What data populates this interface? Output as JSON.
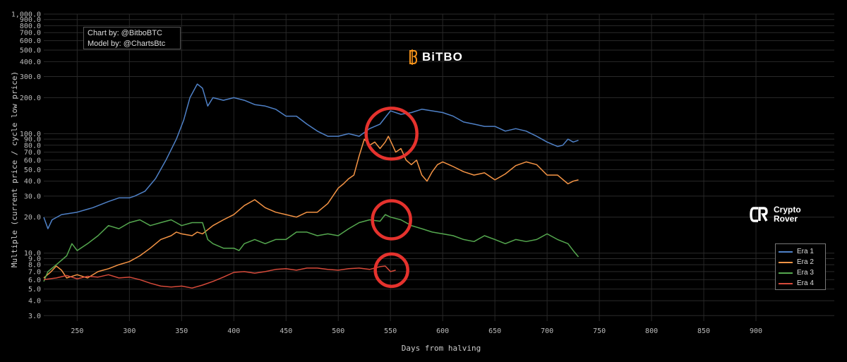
{
  "credits": {
    "line1": "Chart by: @BitboBTC",
    "line2": "Model by: @ChartsBtc"
  },
  "brand": {
    "name": "BiTBO",
    "icon": "bitbo-b-icon",
    "color": "#f7931a"
  },
  "watermark": {
    "line1": "Crypto",
    "line2": "Rover",
    "icon": "crypto-rover-cr-icon"
  },
  "chart_data": {
    "type": "line",
    "xlabel": "Days from halving",
    "ylabel": "Multiple (current price / cycle low price)",
    "yscale": "log",
    "xlim": [
      218,
      975
    ],
    "ylim": [
      2.7,
      1000
    ],
    "grid": true,
    "legend_position": "bottom-right",
    "x_ticks": [
      "250",
      "300",
      "350",
      "400",
      "450",
      "500",
      "550",
      "600",
      "650",
      "700",
      "750",
      "800",
      "850",
      "900"
    ],
    "y_ticks": [
      "3.0",
      "4.0",
      "5.0",
      "6.0",
      "7.0",
      "8.0",
      "9.0",
      "10.0",
      "20.0",
      "30.0",
      "40.0",
      "50.0",
      "60.0",
      "70.0",
      "80.0",
      "90.0",
      "100.0",
      "200.0",
      "300.0",
      "400.0",
      "500.0",
      "600.0",
      "700.0",
      "800.0",
      "900.0",
      "1,000.0"
    ],
    "series": [
      {
        "name": "Era 1",
        "color": "#4f81c7",
        "points": [
          [
            218,
            20
          ],
          [
            222,
            16
          ],
          [
            226,
            19
          ],
          [
            235,
            21
          ],
          [
            250,
            22
          ],
          [
            265,
            24
          ],
          [
            280,
            27
          ],
          [
            290,
            29
          ],
          [
            300,
            29
          ],
          [
            305,
            30
          ],
          [
            315,
            33
          ],
          [
            325,
            42
          ],
          [
            335,
            60
          ],
          [
            345,
            90
          ],
          [
            352,
            130
          ],
          [
            358,
            200
          ],
          [
            365,
            260
          ],
          [
            370,
            240
          ],
          [
            375,
            170
          ],
          [
            380,
            200
          ],
          [
            390,
            190
          ],
          [
            400,
            200
          ],
          [
            410,
            190
          ],
          [
            420,
            175
          ],
          [
            430,
            170
          ],
          [
            440,
            160
          ],
          [
            450,
            140
          ],
          [
            460,
            140
          ],
          [
            470,
            120
          ],
          [
            480,
            105
          ],
          [
            490,
            95
          ],
          [
            500,
            95
          ],
          [
            510,
            100
          ],
          [
            520,
            95
          ],
          [
            530,
            110
          ],
          [
            540,
            120
          ],
          [
            550,
            155
          ],
          [
            560,
            145
          ],
          [
            570,
            150
          ],
          [
            580,
            160
          ],
          [
            590,
            155
          ],
          [
            600,
            150
          ],
          [
            610,
            140
          ],
          [
            620,
            125
          ],
          [
            630,
            120
          ],
          [
            640,
            115
          ],
          [
            650,
            115
          ],
          [
            660,
            105
          ],
          [
            670,
            110
          ],
          [
            680,
            105
          ],
          [
            690,
            95
          ],
          [
            700,
            85
          ],
          [
            710,
            78
          ],
          [
            715,
            80
          ],
          [
            720,
            90
          ],
          [
            725,
            85
          ],
          [
            730,
            88
          ]
        ]
      },
      {
        "name": "Era 2",
        "color": "#f59445",
        "points": [
          [
            218,
            6.2
          ],
          [
            225,
            7
          ],
          [
            230,
            7.8
          ],
          [
            235,
            7.2
          ],
          [
            240,
            6.2
          ],
          [
            250,
            6.6
          ],
          [
            260,
            6.2
          ],
          [
            270,
            7
          ],
          [
            280,
            7.4
          ],
          [
            290,
            8
          ],
          [
            300,
            8.5
          ],
          [
            310,
            9.5
          ],
          [
            320,
            11
          ],
          [
            330,
            13
          ],
          [
            340,
            14
          ],
          [
            345,
            15
          ],
          [
            350,
            14.5
          ],
          [
            360,
            14
          ],
          [
            365,
            15
          ],
          [
            370,
            14.5
          ],
          [
            380,
            17
          ],
          [
            390,
            19
          ],
          [
            400,
            21
          ],
          [
            410,
            25
          ],
          [
            420,
            28
          ],
          [
            430,
            24
          ],
          [
            440,
            22
          ],
          [
            450,
            21
          ],
          [
            460,
            20
          ],
          [
            470,
            22
          ],
          [
            480,
            22
          ],
          [
            490,
            26
          ],
          [
            500,
            35
          ],
          [
            505,
            38
          ],
          [
            510,
            42
          ],
          [
            515,
            45
          ],
          [
            520,
            65
          ],
          [
            525,
            90
          ],
          [
            530,
            80
          ],
          [
            535,
            85
          ],
          [
            540,
            75
          ],
          [
            545,
            85
          ],
          [
            548,
            95
          ],
          [
            552,
            80
          ],
          [
            555,
            70
          ],
          [
            560,
            75
          ],
          [
            565,
            60
          ],
          [
            570,
            55
          ],
          [
            575,
            60
          ],
          [
            580,
            45
          ],
          [
            585,
            40
          ],
          [
            590,
            48
          ],
          [
            595,
            55
          ],
          [
            600,
            58
          ],
          [
            610,
            53
          ],
          [
            620,
            48
          ],
          [
            630,
            45
          ],
          [
            640,
            47
          ],
          [
            650,
            41
          ],
          [
            660,
            46
          ],
          [
            670,
            54
          ],
          [
            680,
            58
          ],
          [
            690,
            55
          ],
          [
            700,
            45
          ],
          [
            710,
            45
          ],
          [
            720,
            38
          ],
          [
            725,
            40
          ],
          [
            730,
            41
          ]
        ]
      },
      {
        "name": "Era 3",
        "color": "#55a84f",
        "points": [
          [
            218,
            5.8
          ],
          [
            222,
            7
          ],
          [
            230,
            8
          ],
          [
            240,
            9.5
          ],
          [
            245,
            12
          ],
          [
            250,
            10.5
          ],
          [
            260,
            12
          ],
          [
            270,
            14
          ],
          [
            280,
            17
          ],
          [
            290,
            16
          ],
          [
            300,
            18
          ],
          [
            310,
            19
          ],
          [
            320,
            17
          ],
          [
            330,
            18
          ],
          [
            340,
            19
          ],
          [
            350,
            17
          ],
          [
            360,
            18
          ],
          [
            370,
            18
          ],
          [
            375,
            13
          ],
          [
            380,
            12
          ],
          [
            390,
            11
          ],
          [
            400,
            11
          ],
          [
            405,
            10.5
          ],
          [
            410,
            12
          ],
          [
            420,
            13
          ],
          [
            430,
            12
          ],
          [
            440,
            13
          ],
          [
            450,
            13
          ],
          [
            460,
            15
          ],
          [
            470,
            15
          ],
          [
            480,
            14
          ],
          [
            490,
            14.5
          ],
          [
            500,
            14
          ],
          [
            510,
            16
          ],
          [
            520,
            18
          ],
          [
            530,
            19
          ],
          [
            540,
            18.5
          ],
          [
            545,
            21
          ],
          [
            550,
            20
          ],
          [
            560,
            19
          ],
          [
            570,
            17
          ],
          [
            580,
            16
          ],
          [
            590,
            15
          ],
          [
            600,
            14.5
          ],
          [
            610,
            14
          ],
          [
            620,
            13
          ],
          [
            630,
            12.5
          ],
          [
            640,
            14
          ],
          [
            650,
            13
          ],
          [
            660,
            12
          ],
          [
            670,
            13
          ],
          [
            680,
            12.5
          ],
          [
            690,
            13
          ],
          [
            700,
            14.5
          ],
          [
            710,
            13
          ],
          [
            720,
            12
          ],
          [
            725,
            10.5
          ],
          [
            730,
            9.3
          ]
        ]
      },
      {
        "name": "Era 4",
        "color": "#d64a3a",
        "points": [
          [
            218,
            6
          ],
          [
            230,
            6.2
          ],
          [
            240,
            6.5
          ],
          [
            250,
            6.1
          ],
          [
            260,
            6.4
          ],
          [
            270,
            6.3
          ],
          [
            280,
            6.6
          ],
          [
            290,
            6.2
          ],
          [
            300,
            6.3
          ],
          [
            310,
            6
          ],
          [
            320,
            5.6
          ],
          [
            330,
            5.3
          ],
          [
            340,
            5.2
          ],
          [
            350,
            5.3
          ],
          [
            360,
            5.1
          ],
          [
            370,
            5.4
          ],
          [
            380,
            5.8
          ],
          [
            390,
            6.3
          ],
          [
            400,
            6.9
          ],
          [
            410,
            7
          ],
          [
            420,
            6.8
          ],
          [
            430,
            7
          ],
          [
            440,
            7.3
          ],
          [
            450,
            7.4
          ],
          [
            460,
            7.2
          ],
          [
            470,
            7.5
          ],
          [
            480,
            7.5
          ],
          [
            490,
            7.3
          ],
          [
            500,
            7.2
          ],
          [
            510,
            7.4
          ],
          [
            520,
            7.5
          ],
          [
            530,
            7.3
          ],
          [
            540,
            7.7
          ],
          [
            545,
            7.8
          ],
          [
            550,
            7
          ],
          [
            555,
            7.2
          ]
        ]
      }
    ],
    "annotations": [
      {
        "type": "circle",
        "x": 551,
        "y": 100,
        "color": "#e5322d"
      },
      {
        "type": "circle",
        "x": 551,
        "y": 19,
        "color": "#e5322d"
      },
      {
        "type": "circle",
        "x": 551,
        "y": 7.2,
        "color": "#e5322d"
      }
    ]
  }
}
